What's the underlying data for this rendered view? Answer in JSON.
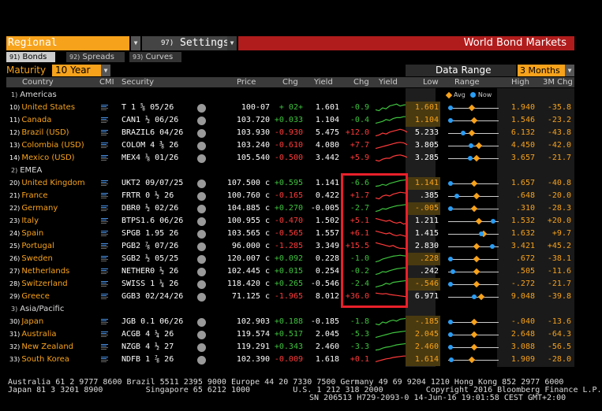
{
  "header": {
    "view_select": "Regional",
    "settings_num": "97)",
    "settings_label": "Settings",
    "title": "World Bond Markets"
  },
  "tabs": [
    {
      "num": "91)",
      "label": "Bonds",
      "active": true
    },
    {
      "num": "92)",
      "label": "Spreads",
      "active": false
    },
    {
      "num": "93)",
      "label": "Curves",
      "active": false
    }
  ],
  "maturity": {
    "label": "Maturity",
    "value": "10 Year"
  },
  "data_range": {
    "label": "Data Range",
    "value": "3 Months"
  },
  "columns": {
    "country": "Country",
    "cmi": "CMI",
    "security": "Security",
    "price": "Price",
    "chg": "Chg",
    "yield": "Yield",
    "ychg": "Chg",
    "yield_chart": "Yield",
    "low": "Low",
    "range": "Range",
    "high": "High",
    "chg3m": "3M Chg"
  },
  "legend": {
    "avg": "Avg",
    "now": "Now",
    "avg_color": "#f7a21b",
    "now_color": "#2a9df4"
  },
  "regions": [
    {
      "num": "1)",
      "name": "Americas"
    },
    {
      "num": "2)",
      "name": "EMEA"
    },
    {
      "num": "3)",
      "name": "Asia/Pacific"
    }
  ],
  "rows": [
    {
      "num": "10)",
      "country": "United States",
      "security": "T 1 ⅝ 05/26",
      "price": "100-07",
      "chg": "+ 02+",
      "yield": "1.601",
      "ychg": "-0.9",
      "low": "1.601",
      "high": "1.940",
      "chg3m": "-35.8",
      "pos_now": 0.0,
      "pos_avg": 0.45,
      "spark": [
        0.3,
        0.2,
        0.5,
        0.4,
        0.7,
        0.8,
        0.9,
        0.7,
        0.8,
        0.85
      ]
    },
    {
      "num": "11)",
      "country": "Canada",
      "security": "CAN1 ½ 06/26",
      "price": "103.720",
      "chg": "+0.033",
      "yield": "1.104",
      "ychg": "-0.4",
      "low": "1.104",
      "high": "1.546",
      "chg3m": "-23.2",
      "pos_now": 0.0,
      "pos_avg": 0.5,
      "spark": [
        0.2,
        0.3,
        0.4,
        0.6,
        0.5,
        0.7,
        0.8,
        0.8,
        0.9,
        0.9
      ]
    },
    {
      "num": "12)",
      "country": "Brazil (USD)",
      "security": "BRAZIL6 04/26",
      "price": "103.930",
      "chg": "-0.930",
      "yield": "5.475",
      "ychg": "+12.0",
      "low": "5.233",
      "high": "6.132",
      "chg3m": "-43.8",
      "pos_now": 0.27,
      "pos_avg": 0.45,
      "spark": [
        0.2,
        0.3,
        0.5,
        0.4,
        0.6,
        0.7,
        0.8,
        0.9,
        0.8,
        0.6
      ]
    },
    {
      "num": "13)",
      "country": "Colombia (USD)",
      "security": "COLOM 4 ⅜ 26",
      "price": "103.240",
      "chg": "-0.610",
      "yield": "4.080",
      "ychg": "+7.7",
      "low": "3.805",
      "high": "4.450",
      "chg3m": "-42.0",
      "pos_now": 0.43,
      "pos_avg": 0.6,
      "spark": [
        0.2,
        0.3,
        0.4,
        0.5,
        0.6,
        0.7,
        0.8,
        0.85,
        0.8,
        0.6
      ]
    },
    {
      "num": "14)",
      "country": "Mexico (USD)",
      "security": "MEX4 ⅛ 01/26",
      "price": "105.540",
      "chg": "-0.500",
      "yield": "3.442",
      "ychg": "+5.9",
      "low": "3.285",
      "high": "3.657",
      "chg3m": "-21.7",
      "pos_now": 0.42,
      "pos_avg": 0.55,
      "spark": [
        0.3,
        0.2,
        0.4,
        0.5,
        0.5,
        0.7,
        0.8,
        0.85,
        0.75,
        0.6
      ]
    },
    {
      "num": "20)",
      "country": "United Kingdom",
      "security": "UKT2 09/07/25",
      "price": "107.500 c",
      "chg": "+0.595",
      "yield": "1.141",
      "ychg": "-6.6",
      "low": "1.141",
      "high": "1.657",
      "chg3m": "-40.8",
      "pos_now": 0.0,
      "pos_avg": 0.5,
      "spark": [
        0.2,
        0.25,
        0.4,
        0.3,
        0.5,
        0.6,
        0.7,
        0.8,
        0.85,
        0.9
      ]
    },
    {
      "num": "21)",
      "country": "France",
      "security": "FRTR 0 ½ 26",
      "price": "100.760 c",
      "chg": "-0.165",
      "yield": "0.422",
      "ychg": "+1.7",
      "low": ".385",
      "high": ".648",
      "chg3m": "-20.0",
      "pos_now": 0.14,
      "pos_avg": 0.55,
      "spark": [
        0.3,
        0.2,
        0.5,
        0.6,
        0.5,
        0.7,
        0.8,
        0.9,
        0.85,
        0.8
      ]
    },
    {
      "num": "22)",
      "country": "Germany",
      "security": "DBR0 ½ 02/26",
      "price": "104.885 c",
      "chg": "+0.270",
      "yield": "-0.005",
      "ychg": "-2.7",
      "low": "-.005",
      "high": ".310",
      "chg3m": "-28.3",
      "pos_now": 0.0,
      "pos_avg": 0.5,
      "spark": [
        0.2,
        0.3,
        0.5,
        0.45,
        0.6,
        0.7,
        0.8,
        0.85,
        0.9,
        0.95
      ]
    },
    {
      "num": "23)",
      "country": "Italy",
      "security": "BTPS1.6 06/26",
      "price": "100.955 c",
      "chg": "-0.470",
      "yield": "1.502",
      "ychg": "+5.1",
      "low": "1.211",
      "high": "1.532",
      "chg3m": "+20.0",
      "pos_now": 0.9,
      "pos_avg": 0.6,
      "spark": [
        0.8,
        0.7,
        0.6,
        0.5,
        0.6,
        0.4,
        0.3,
        0.4,
        0.2,
        0.3
      ]
    },
    {
      "num": "24)",
      "country": "Spain",
      "security": "SPGB 1.95 26",
      "price": "103.565 c",
      "chg": "-0.565",
      "yield": "1.557",
      "ychg": "+6.1",
      "low": "1.415",
      "high": "1.632",
      "chg3m": "+9.7",
      "pos_now": 0.65,
      "pos_avg": 0.7,
      "spark": [
        0.8,
        0.7,
        0.6,
        0.5,
        0.6,
        0.4,
        0.3,
        0.4,
        0.3,
        0.2
      ]
    },
    {
      "num": "25)",
      "country": "Portugal",
      "security": "PGB2 ⅞ 07/26",
      "price": "96.000 c",
      "chg": "-1.285",
      "yield": "3.349",
      "ychg": "+15.5",
      "low": "2.830",
      "high": "3.421",
      "chg3m": "+45.2",
      "pos_now": 0.88,
      "pos_avg": 0.55,
      "spark": [
        0.9,
        0.8,
        0.7,
        0.6,
        0.5,
        0.6,
        0.4,
        0.3,
        0.3,
        0.2
      ]
    },
    {
      "num": "26)",
      "country": "Sweden",
      "security": "SGB2 ½ 05/25",
      "price": "120.007 c",
      "chg": "+0.092",
      "yield": "0.228",
      "ychg": "-1.0",
      "low": ".228",
      "high": ".672",
      "chg3m": "-38.1",
      "pos_now": 0.0,
      "pos_avg": 0.55,
      "spark": [
        0.2,
        0.3,
        0.5,
        0.6,
        0.7,
        0.8,
        0.85,
        0.9,
        0.85,
        0.8
      ]
    },
    {
      "num": "27)",
      "country": "Netherlands",
      "security": "NETHER0 ½ 26",
      "price": "102.445 c",
      "chg": "+0.015",
      "yield": "0.254",
      "ychg": "-0.2",
      "low": ".242",
      "high": ".505",
      "chg3m": "-11.6",
      "pos_now": 0.05,
      "pos_avg": 0.55,
      "spark": [
        0.2,
        0.3,
        0.5,
        0.45,
        0.6,
        0.7,
        0.8,
        0.85,
        0.9,
        0.9
      ]
    },
    {
      "num": "28)",
      "country": "Switzerland",
      "security": "SWISS 1 ¼ 26",
      "price": "118.420 c",
      "chg": "+0.265",
      "yield": "-0.546",
      "ychg": "-2.4",
      "low": "-.546",
      "high": "-.272",
      "chg3m": "-21.7",
      "pos_now": 0.0,
      "pos_avg": 0.55,
      "spark": [
        0.2,
        0.3,
        0.4,
        0.6,
        0.5,
        0.7,
        0.75,
        0.8,
        0.85,
        0.9
      ]
    },
    {
      "num": "29)",
      "country": "Greece",
      "security": "GGB3 02/24/26",
      "price": "71.125 c",
      "chg": "-1.965",
      "yield": "8.012",
      "ychg": "+36.0",
      "low": "6.971",
      "high": "9.048",
      "chg3m": "-39.8",
      "pos_now": 0.5,
      "pos_avg": 0.65,
      "spark": [
        0.9,
        0.85,
        0.8,
        0.85,
        0.75,
        0.7,
        0.65,
        0.6,
        0.55,
        0.5
      ]
    },
    {
      "num": "30)",
      "country": "Japan",
      "security": "JGB 0.1 06/26",
      "price": "102.903",
      "chg": "+0.188",
      "yield": "-0.185",
      "ychg": "-1.8",
      "low": "-.185",
      "high": "-.040",
      "chg3m": "-13.6",
      "pos_now": 0.0,
      "pos_avg": 0.5,
      "spark": [
        0.3,
        0.2,
        0.5,
        0.4,
        0.6,
        0.7,
        0.6,
        0.8,
        0.85,
        0.9
      ]
    },
    {
      "num": "31)",
      "country": "Australia",
      "security": "ACGB 4 ¼ 26",
      "price": "119.574",
      "chg": "+0.517",
      "yield": "2.045",
      "ychg": "-5.3",
      "low": "2.045",
      "high": "2.648",
      "chg3m": "-64.3",
      "pos_now": 0.0,
      "pos_avg": 0.5,
      "spark": [
        0.2,
        0.3,
        0.4,
        0.5,
        0.6,
        0.7,
        0.75,
        0.8,
        0.85,
        0.9
      ]
    },
    {
      "num": "32)",
      "country": "New Zealand",
      "security": "NZGB 4 ½ 27",
      "price": "119.291",
      "chg": "+0.343",
      "yield": "2.460",
      "ychg": "-3.3",
      "low": "2.460",
      "high": "3.088",
      "chg3m": "-56.5",
      "pos_now": 0.0,
      "pos_avg": 0.5,
      "spark": [
        0.2,
        0.25,
        0.4,
        0.5,
        0.55,
        0.65,
        0.75,
        0.8,
        0.85,
        0.9
      ]
    },
    {
      "num": "33)",
      "country": "South Korea",
      "security": "NDFB 1 ⅞ 26",
      "price": "102.390",
      "chg": "-0.009",
      "yield": "1.618",
      "ychg": "+0.1",
      "low": "1.614",
      "high": "1.909",
      "chg3m": "-28.0",
      "pos_now": 0.02,
      "pos_avg": 0.45,
      "spark": [
        0.3,
        0.4,
        0.5,
        0.6,
        0.65,
        0.75,
        0.8,
        0.85,
        0.9,
        0.9
      ]
    }
  ],
  "footer": {
    "line1": "Australia 61 2 9777 8600 Brazil 5511 2395 9000 Europe 44 20 7330 7500 Germany 49 69 9204 1210 Hong Kong 852 2977 6000",
    "line2": "Japan 81 3 3201 8900         Singapore 65 6212 1000         U.S. 1 212 318 2000         Copyright 2016 Bloomberg Finance L.P.",
    "line3": "SN 206513 H729-2093-0 14-Jun-16 19:01:58 CEST GMT+2:00"
  }
}
